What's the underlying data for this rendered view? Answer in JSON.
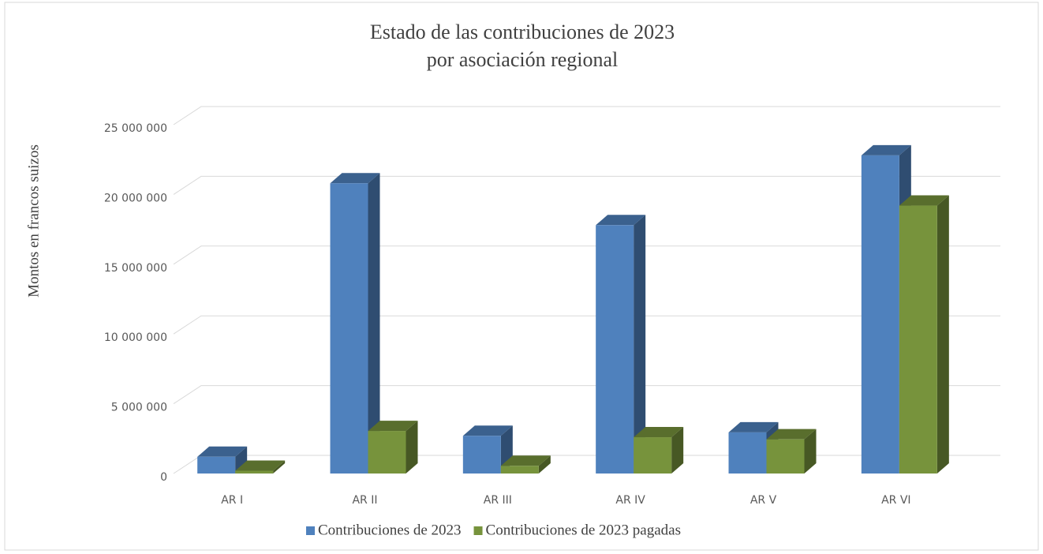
{
  "chart_data": {
    "type": "bar3d",
    "title": [
      "Estado de las contribuciones de 2023",
      "por asociación regional"
    ],
    "y_label": "Montos en francos suizos",
    "categories": [
      "AR I",
      "AR II",
      "AR III",
      "AR IV",
      "AR V",
      "AR VI"
    ],
    "series": [
      {
        "name": "Contribuciones de 2023",
        "color": "#4f81bd",
        "values": [
          1200000,
          20800000,
          2700000,
          17800000,
          2950000,
          22800000
        ]
      },
      {
        "name": "Contribuciones de 2023 pagadas",
        "color": "#77933c",
        "values": [
          200000,
          3050000,
          550000,
          2600000,
          2450000,
          19200000
        ]
      }
    ],
    "ylim": [
      0,
      25000000
    ],
    "yticks": [
      {
        "value": 0,
        "label": "0"
      },
      {
        "value": 5000000,
        "label": "5 000 000"
      },
      {
        "value": 10000000,
        "label": "10 000 000"
      },
      {
        "value": 15000000,
        "label": "15 000 000"
      },
      {
        "value": 20000000,
        "label": "20 000 000"
      },
      {
        "value": 25000000,
        "label": "25 000 000"
      }
    ],
    "grid": true,
    "legend": "bottom"
  }
}
